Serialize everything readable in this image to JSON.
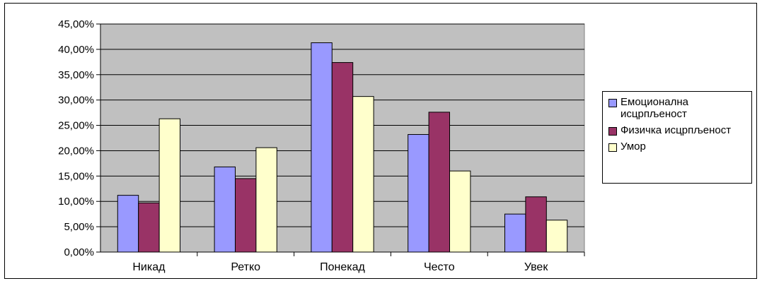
{
  "chart_data": {
    "type": "bar",
    "title": "",
    "xlabel": "",
    "ylabel": "",
    "categories": [
      "Никад",
      "Ретко",
      "Понекад",
      "Често",
      "Увек"
    ],
    "series": [
      {
        "name": "Емоционална исцрпљеност",
        "color": "#9999ff",
        "values": [
          11.2,
          16.8,
          41.3,
          23.2,
          7.5
        ]
      },
      {
        "name": "Физичка исцрпљеност",
        "color": "#993366",
        "values": [
          9.7,
          14.5,
          37.4,
          27.6,
          10.9
        ]
      },
      {
        "name": "Умор",
        "color": "#ffffcc",
        "values": [
          26.3,
          20.6,
          30.7,
          16.0,
          6.3
        ]
      }
    ],
    "ylim": [
      0,
      45
    ],
    "y_ticks": [
      "0,00%",
      "5,00%",
      "10,00%",
      "15,00%",
      "20,00%",
      "25,00%",
      "30,00%",
      "35,00%",
      "40,00%",
      "45,00%"
    ],
    "grid": true,
    "plot_background": "#c0c0c0",
    "legend_position": "right"
  }
}
